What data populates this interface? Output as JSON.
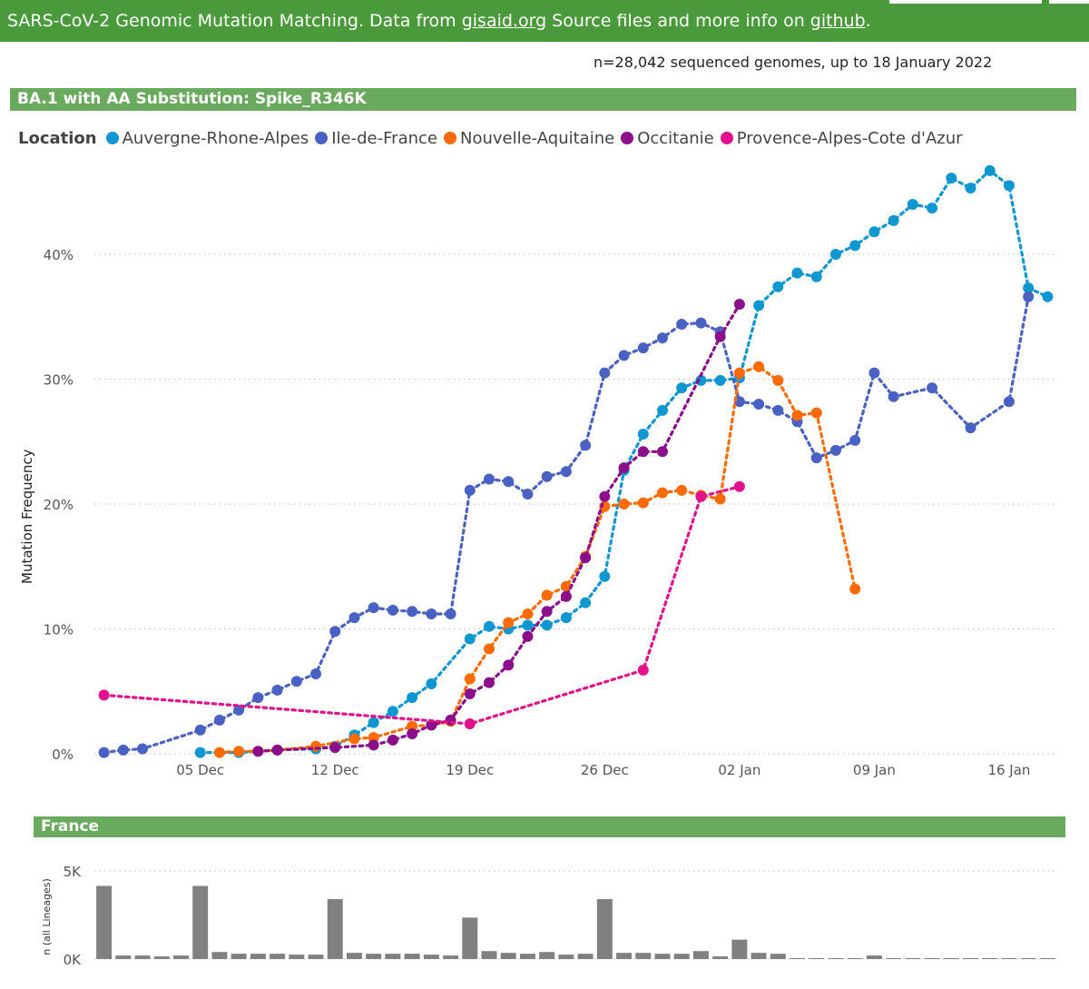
{
  "banner": {
    "text_prefix": "SARS-CoV-2 Genomic Mutation Matching. Data from ",
    "link1": "gisaid.org",
    "text_middle": " Source files and more info on ",
    "link2": "github",
    "text_suffix": "."
  },
  "subtitle": "n=28,042 sequenced genomes, up to 18 January 2022",
  "colors": {
    "banner": "#4a9a3b",
    "section_header": "#6aaa5e",
    "bar": "#808080",
    "gridline": "#c8c8c8"
  },
  "main_chart_header": "BA.1 with AA Substitution: Spike_R346K",
  "legend": {
    "title": "Location"
  },
  "bar_chart_header": "France",
  "chart_data": [
    {
      "type": "line",
      "title": "BA.1 with AA Substitution: Spike_R346K",
      "xlabel": "",
      "ylabel": "Mutation Frequency",
      "x_unit": "days since 30 Nov 2021",
      "xlim": [
        -0.5,
        49.5
      ],
      "ylim": [
        0,
        48
      ],
      "y_ticks": [
        0,
        10,
        20,
        30,
        40
      ],
      "y_tick_labels": [
        "0%",
        "10%",
        "20%",
        "30%",
        "40%"
      ],
      "x_ticks": [
        5,
        12,
        19,
        26,
        33,
        40,
        47
      ],
      "x_tick_labels": [
        "05 Dec",
        "12 Dec",
        "19 Dec",
        "26 Dec",
        "02 Jan",
        "09 Jan",
        "16 Jan"
      ],
      "grid": true,
      "line_style": "dotted",
      "series": [
        {
          "name": "Auvergne-Rhone-Alpes",
          "color": "#0f97d1",
          "points": [
            [
              5,
              0.1
            ],
            [
              7,
              0.1
            ],
            [
              9,
              0.3
            ],
            [
              11,
              0.4
            ],
            [
              12,
              0.6
            ],
            [
              13,
              1.5
            ],
            [
              14,
              2.5
            ],
            [
              15,
              3.4
            ],
            [
              16,
              4.5
            ],
            [
              17,
              5.6
            ],
            [
              19,
              9.2
            ],
            [
              20,
              10.2
            ],
            [
              21,
              10.0
            ],
            [
              22,
              10.3
            ],
            [
              23,
              10.3
            ],
            [
              24,
              10.9
            ],
            [
              25,
              12.1
            ],
            [
              26,
              14.2
            ],
            [
              27,
              22.7
            ],
            [
              28,
              25.6
            ],
            [
              29,
              27.5
            ],
            [
              30,
              29.3
            ],
            [
              31,
              29.9
            ],
            [
              32,
              29.9
            ],
            [
              33,
              30.1
            ],
            [
              34,
              35.9
            ],
            [
              35,
              37.4
            ],
            [
              36,
              38.5
            ],
            [
              37,
              38.2
            ],
            [
              38,
              40.0
            ],
            [
              39,
              40.7
            ],
            [
              40,
              41.8
            ],
            [
              41,
              42.7
            ],
            [
              42,
              44.0
            ],
            [
              43,
              43.7
            ],
            [
              44,
              46.1
            ],
            [
              45,
              45.3
            ],
            [
              46,
              46.7
            ],
            [
              47,
              45.5
            ],
            [
              48,
              37.3
            ],
            [
              49,
              36.6
            ]
          ]
        },
        {
          "name": "Ile-de-France",
          "color": "#4a61c4",
          "points": [
            [
              0,
              0.1
            ],
            [
              1,
              0.3
            ],
            [
              2,
              0.4
            ],
            [
              5,
              1.9
            ],
            [
              6,
              2.7
            ],
            [
              7,
              3.5
            ],
            [
              8,
              4.5
            ],
            [
              9,
              5.1
            ],
            [
              10,
              5.8
            ],
            [
              11,
              6.4
            ],
            [
              12,
              9.8
            ],
            [
              13,
              10.9
            ],
            [
              14,
              11.7
            ],
            [
              15,
              11.5
            ],
            [
              16,
              11.4
            ],
            [
              17,
              11.2
            ],
            [
              18,
              11.2
            ],
            [
              19,
              21.1
            ],
            [
              20,
              22.0
            ],
            [
              21,
              21.8
            ],
            [
              22,
              20.8
            ],
            [
              23,
              22.2
            ],
            [
              24,
              22.6
            ],
            [
              25,
              24.7
            ],
            [
              26,
              30.5
            ],
            [
              27,
              31.9
            ],
            [
              28,
              32.5
            ],
            [
              29,
              33.3
            ],
            [
              30,
              34.4
            ],
            [
              31,
              34.5
            ],
            [
              32,
              33.8
            ],
            [
              33,
              28.2
            ],
            [
              34,
              28.0
            ],
            [
              35,
              27.5
            ],
            [
              36,
              26.6
            ],
            [
              37,
              23.7
            ],
            [
              38,
              24.3
            ],
            [
              39,
              25.1
            ],
            [
              40,
              30.5
            ],
            [
              41,
              28.6
            ],
            [
              43,
              29.3
            ],
            [
              45,
              26.1
            ],
            [
              47,
              28.2
            ],
            [
              48,
              36.6
            ]
          ]
        },
        {
          "name": "Nouvelle-Aquitaine",
          "color": "#ff6b00",
          "points": [
            [
              6,
              0.1
            ],
            [
              7,
              0.2
            ],
            [
              8,
              0.2
            ],
            [
              9,
              0.3
            ],
            [
              11,
              0.6
            ],
            [
              13,
              1.2
            ],
            [
              14,
              1.3
            ],
            [
              16,
              2.2
            ],
            [
              17,
              2.3
            ],
            [
              18,
              2.6
            ],
            [
              19,
              6.0
            ],
            [
              20,
              8.4
            ],
            [
              21,
              10.5
            ],
            [
              22,
              11.2
            ],
            [
              23,
              12.7
            ],
            [
              24,
              13.4
            ],
            [
              25,
              15.8
            ],
            [
              26,
              19.8
            ],
            [
              27,
              20.0
            ],
            [
              28,
              20.1
            ],
            [
              29,
              20.9
            ],
            [
              30,
              21.1
            ],
            [
              31,
              20.7
            ],
            [
              32,
              20.4
            ],
            [
              33,
              30.5
            ],
            [
              34,
              31.0
            ],
            [
              35,
              29.9
            ],
            [
              36,
              27.1
            ],
            [
              37,
              27.3
            ],
            [
              39,
              13.2
            ]
          ]
        },
        {
          "name": "Occitanie",
          "color": "#8b0f8b",
          "points": [
            [
              8,
              0.2
            ],
            [
              9,
              0.3
            ],
            [
              12,
              0.5
            ],
            [
              14,
              0.7
            ],
            [
              15,
              1.1
            ],
            [
              16,
              1.6
            ],
            [
              17,
              2.3
            ],
            [
              18,
              2.7
            ],
            [
              19,
              4.8
            ],
            [
              20,
              5.7
            ],
            [
              21,
              7.1
            ],
            [
              22,
              9.4
            ],
            [
              23,
              11.4
            ],
            [
              24,
              12.6
            ],
            [
              25,
              15.7
            ],
            [
              26,
              20.6
            ],
            [
              27,
              22.9
            ],
            [
              28,
              24.2
            ],
            [
              29,
              24.2
            ],
            [
              32,
              33.4
            ],
            [
              33,
              36.0
            ]
          ]
        },
        {
          "name": "Provence-Alpes-Cote d'Azur",
          "color": "#e2118c",
          "points": [
            [
              0,
              4.7
            ],
            [
              19,
              2.4
            ],
            [
              28,
              6.7
            ],
            [
              31,
              20.6
            ],
            [
              33,
              21.4
            ]
          ]
        }
      ]
    },
    {
      "type": "bar",
      "title": "France",
      "ylabel": "n (all Lineages)",
      "ylim": [
        0,
        5000
      ],
      "y_ticks": [
        0,
        5000
      ],
      "y_tick_labels": [
        "0K",
        "5K"
      ],
      "grid": true,
      "color": "#808080",
      "categories_unit": "days since 30 Nov 2021",
      "categories": [
        0,
        1,
        2,
        3,
        4,
        5,
        6,
        7,
        8,
        9,
        10,
        11,
        12,
        13,
        14,
        15,
        16,
        17,
        18,
        19,
        20,
        21,
        22,
        23,
        24,
        25,
        26,
        27,
        28,
        29,
        30,
        31,
        32,
        33,
        34,
        35,
        36,
        37,
        38,
        39,
        40,
        41,
        42,
        43,
        44,
        45,
        46,
        47,
        48,
        49
      ],
      "values": [
        4150,
        200,
        200,
        150,
        200,
        4150,
        400,
        300,
        300,
        300,
        250,
        250,
        3400,
        350,
        300,
        300,
        300,
        250,
        200,
        2350,
        450,
        350,
        300,
        400,
        250,
        300,
        3400,
        350,
        350,
        300,
        300,
        450,
        150,
        1100,
        350,
        300,
        50,
        50,
        50,
        50,
        200,
        50,
        50,
        50,
        50,
        50,
        50,
        50,
        50,
        50
      ]
    }
  ]
}
